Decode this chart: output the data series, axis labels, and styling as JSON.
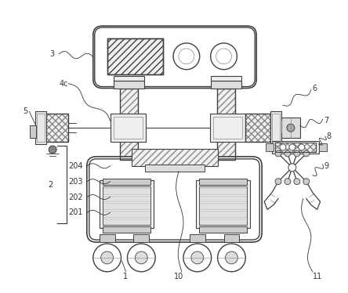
{
  "bg_color": "#ffffff",
  "lc": "#404040",
  "lc_light": "#888888",
  "figsize": [
    4.44,
    3.74
  ],
  "dpi": 100,
  "label_fs": 7,
  "label_color": "#333333"
}
